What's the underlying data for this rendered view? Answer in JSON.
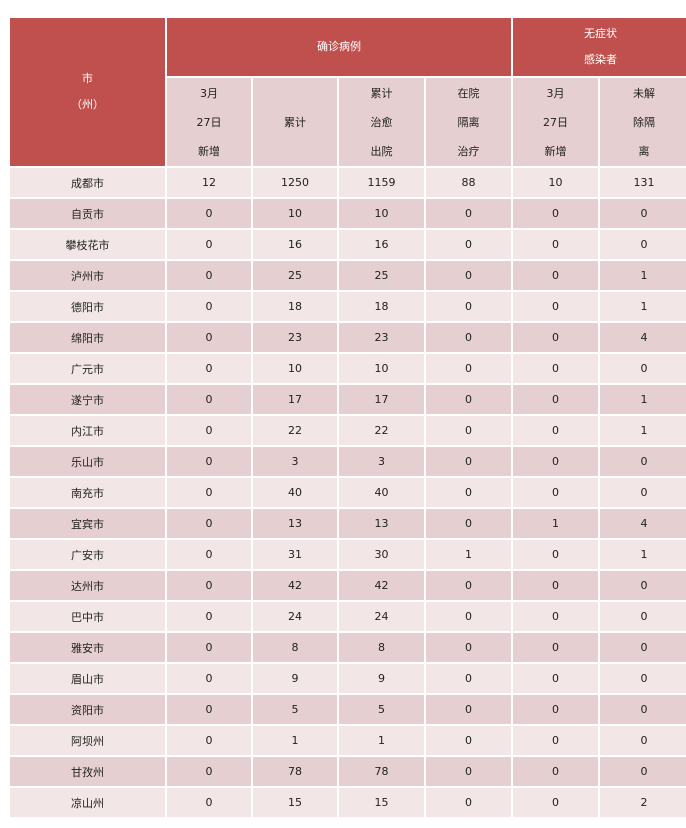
{
  "header": {
    "city": [
      "市",
      "（州）"
    ],
    "confirmed_group": "确诊病例",
    "asymptomatic_group": [
      "无症状",
      "感染者"
    ],
    "columns": [
      [
        "3月",
        "27日",
        "新增"
      ],
      [
        "累计"
      ],
      [
        "累计",
        "治愈",
        "出院"
      ],
      [
        "在院",
        "隔离",
        "治疗"
      ],
      [
        "3月",
        "27日",
        "新增"
      ],
      [
        "未解",
        "除隔",
        "离"
      ]
    ]
  },
  "colors": {
    "header": "#c0504d",
    "row_dark": "#e6cfd0",
    "row_light": "#f2e6e6"
  },
  "rows": [
    [
      "成都市",
      "12",
      "1250",
      "1159",
      "88",
      "10",
      "131"
    ],
    [
      "自贡市",
      "0",
      "10",
      "10",
      "0",
      "0",
      "0"
    ],
    [
      "攀枝花市",
      "0",
      "16",
      "16",
      "0",
      "0",
      "0"
    ],
    [
      "泸州市",
      "0",
      "25",
      "25",
      "0",
      "0",
      "1"
    ],
    [
      "德阳市",
      "0",
      "18",
      "18",
      "0",
      "0",
      "1"
    ],
    [
      "绵阳市",
      "0",
      "23",
      "23",
      "0",
      "0",
      "4"
    ],
    [
      "广元市",
      "0",
      "10",
      "10",
      "0",
      "0",
      "0"
    ],
    [
      "遂宁市",
      "0",
      "17",
      "17",
      "0",
      "0",
      "1"
    ],
    [
      "内江市",
      "0",
      "22",
      "22",
      "0",
      "0",
      "1"
    ],
    [
      "乐山市",
      "0",
      "3",
      "3",
      "0",
      "0",
      "0"
    ],
    [
      "南充市",
      "0",
      "40",
      "40",
      "0",
      "0",
      "0"
    ],
    [
      "宜宾市",
      "0",
      "13",
      "13",
      "0",
      "1",
      "4"
    ],
    [
      "广安市",
      "0",
      "31",
      "30",
      "1",
      "0",
      "1"
    ],
    [
      "达州市",
      "0",
      "42",
      "42",
      "0",
      "0",
      "0"
    ],
    [
      "巴中市",
      "0",
      "24",
      "24",
      "0",
      "0",
      "0"
    ],
    [
      "雅安市",
      "0",
      "8",
      "8",
      "0",
      "0",
      "0"
    ],
    [
      "眉山市",
      "0",
      "9",
      "9",
      "0",
      "0",
      "0"
    ],
    [
      "资阳市",
      "0",
      "5",
      "5",
      "0",
      "0",
      "0"
    ],
    [
      "阿坝州",
      "0",
      "1",
      "1",
      "0",
      "0",
      "0"
    ],
    [
      "甘孜州",
      "0",
      "78",
      "78",
      "0",
      "0",
      "0"
    ],
    [
      "凉山州",
      "0",
      "15",
      "15",
      "0",
      "0",
      "2"
    ]
  ]
}
